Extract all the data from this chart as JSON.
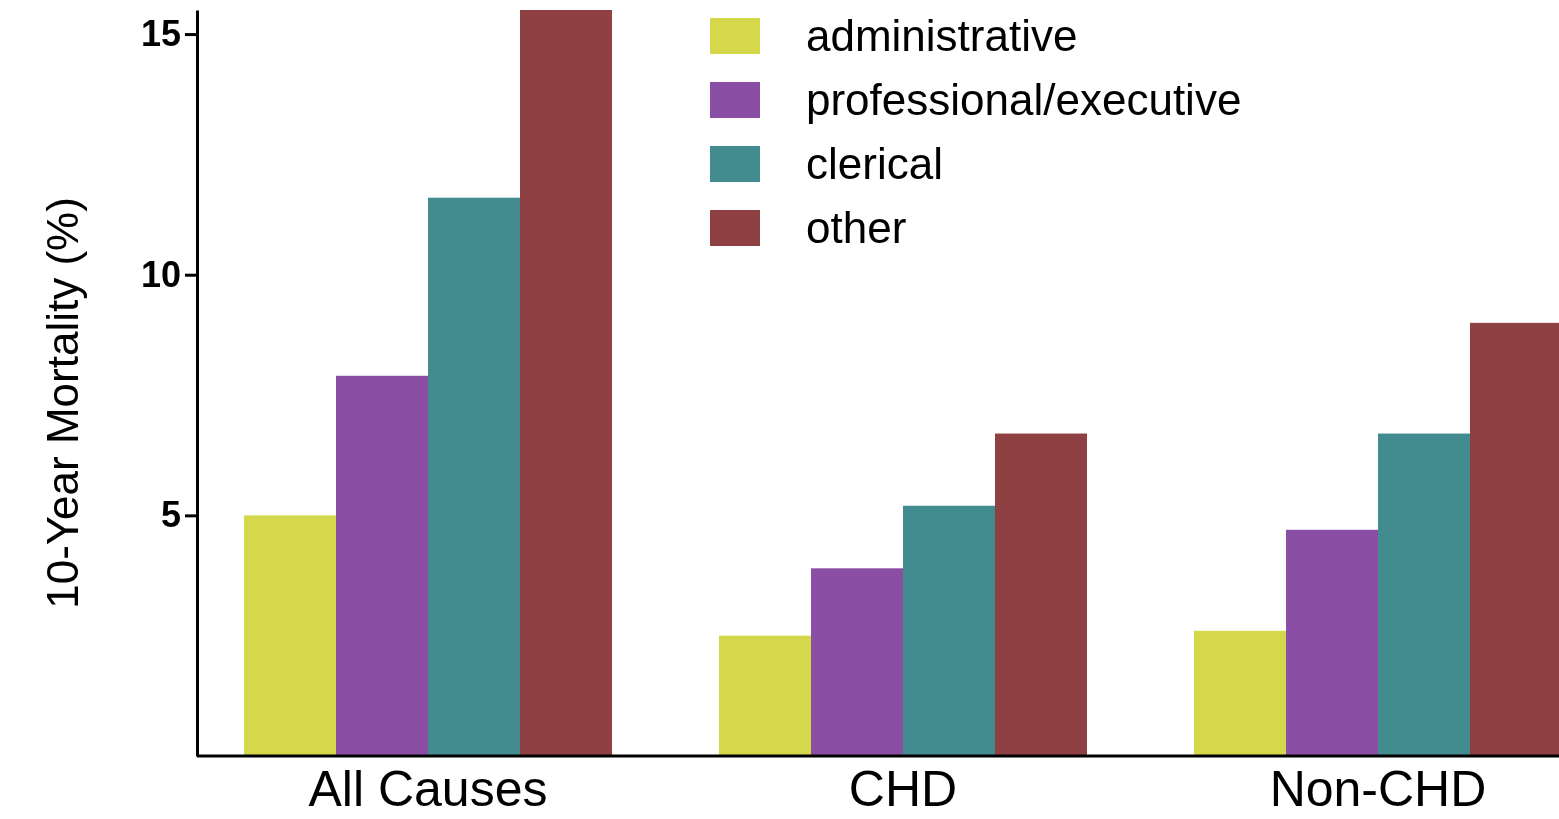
{
  "chart_data": {
    "type": "bar",
    "ylabel": "10-Year Mortality (%)",
    "categories": [
      "All Causes",
      "CHD",
      "Non-CHD"
    ],
    "series": [
      {
        "name": "administrative",
        "color": "#d4d84a",
        "values": [
          5.0,
          2.5,
          2.6
        ]
      },
      {
        "name": "professional/executive",
        "color": "#8a4fa5",
        "values": [
          7.9,
          3.9,
          4.7
        ]
      },
      {
        "name": "clerical",
        "color": "#428c8f",
        "values": [
          11.6,
          5.2,
          6.7
        ]
      },
      {
        "name": "other",
        "color": "#8f4043",
        "values": [
          15.5,
          6.7,
          9.0
        ]
      }
    ],
    "ylim": [
      0,
      15.5
    ],
    "yticks": [
      5,
      10,
      15
    ],
    "grid": false,
    "legend": "top right"
  }
}
